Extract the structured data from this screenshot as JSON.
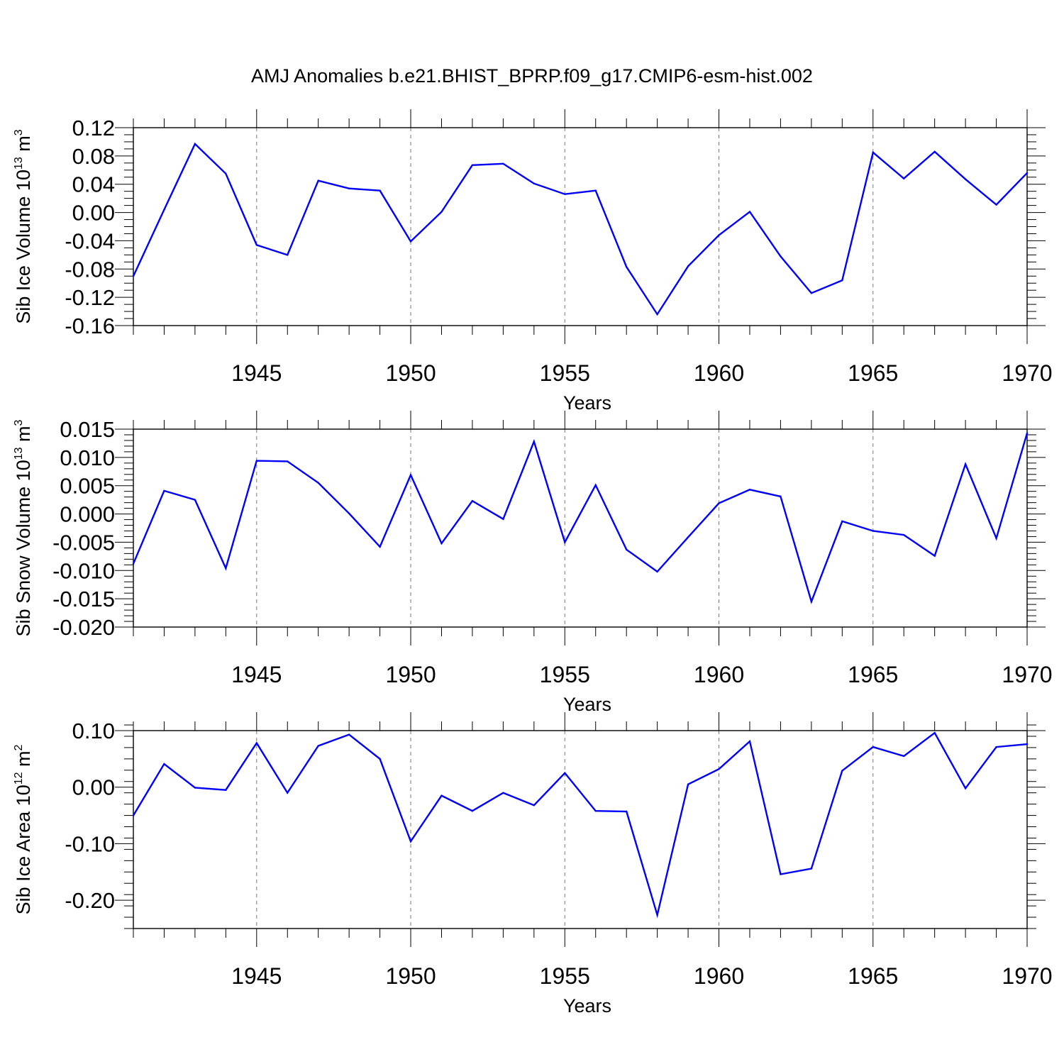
{
  "title": "AMJ Anomalies b.e21.BHIST_BPRP.f09_g17.CMIP6-esm-hist.002",
  "chart_data": [
    {
      "type": "line",
      "ylabel_main": "Sib Ice Volume 10",
      "ylabel_exp": "13",
      "ylabel_unit": "m",
      "ylabel_unit_exp": "3",
      "xlabel": "Years",
      "xlim": [
        1941,
        1970
      ],
      "ylim": [
        -0.16,
        0.12
      ],
      "yticks": [
        0.12,
        0.08,
        0.04,
        0.0,
        -0.04,
        -0.08,
        -0.12,
        -0.16
      ],
      "yticklabels": [
        "0.12",
        "0.08",
        "0.04",
        "0.00",
        "-0.04",
        "-0.08",
        "-0.12",
        "-0.16"
      ],
      "yminor": 0.01,
      "xticks": [
        1945,
        1950,
        1955,
        1960,
        1965,
        1970
      ],
      "xticklabels": [
        "1945",
        "1950",
        "1955",
        "1960",
        "1965",
        "1970"
      ],
      "grid": "dashed vertical at major x ticks",
      "line_color": "#0000ff",
      "x": [
        1941,
        1942,
        1943,
        1944,
        1945,
        1946,
        1947,
        1948,
        1949,
        1950,
        1951,
        1952,
        1953,
        1954,
        1955,
        1956,
        1957,
        1958,
        1959,
        1960,
        1961,
        1962,
        1963,
        1964,
        1965,
        1966,
        1967,
        1968,
        1969,
        1970
      ],
      "values": [
        -0.09,
        0.004,
        0.097,
        0.055,
        -0.046,
        -0.06,
        0.045,
        0.034,
        0.031,
        -0.041,
        0.001,
        0.067,
        0.069,
        0.041,
        0.026,
        0.031,
        -0.077,
        -0.144,
        -0.076,
        -0.032,
        0.001,
        -0.062,
        -0.114,
        -0.096,
        0.085,
        0.048,
        0.086,
        0.047,
        0.011,
        0.056
      ]
    },
    {
      "type": "line",
      "ylabel_main": "Sib Snow Volume 10",
      "ylabel_exp": "13",
      "ylabel_unit": "m",
      "ylabel_unit_exp": "3",
      "xlabel": "Years",
      "xlim": [
        1941,
        1970
      ],
      "ylim": [
        -0.02,
        0.015
      ],
      "yticks": [
        0.015,
        0.01,
        0.005,
        0.0,
        -0.005,
        -0.01,
        -0.015,
        -0.02
      ],
      "yticklabels": [
        "0.015",
        "0.010",
        "0.005",
        "0.000",
        "-0.005",
        "-0.010",
        "-0.015",
        "-0.020"
      ],
      "yminor": 0.001,
      "xticks": [
        1945,
        1950,
        1955,
        1960,
        1965,
        1970
      ],
      "xticklabels": [
        "1945",
        "1950",
        "1955",
        "1960",
        "1965",
        "1970"
      ],
      "grid": "dashed vertical at major x ticks",
      "line_color": "#0000ff",
      "x": [
        1941,
        1942,
        1943,
        1944,
        1945,
        1946,
        1947,
        1948,
        1949,
        1950,
        1951,
        1952,
        1953,
        1954,
        1955,
        1956,
        1957,
        1958,
        1959,
        1960,
        1961,
        1962,
        1963,
        1964,
        1965,
        1966,
        1967,
        1968,
        1969,
        1970
      ],
      "values": [
        -0.0088,
        0.0041,
        0.0025,
        -0.0096,
        0.0094,
        0.0093,
        0.0055,
        0.0001,
        -0.0058,
        0.0069,
        -0.0052,
        0.0023,
        -0.0009,
        0.0128,
        -0.005,
        0.0051,
        -0.0063,
        -0.0102,
        -0.0041,
        0.0019,
        0.0043,
        0.0031,
        -0.0155,
        -0.0013,
        -0.003,
        -0.0037,
        -0.0074,
        0.0088,
        -0.0043,
        0.0143
      ]
    },
    {
      "type": "line",
      "ylabel_main": "Sib Ice Area 10",
      "ylabel_exp": "12",
      "ylabel_unit": "m",
      "ylabel_unit_exp": "2",
      "xlabel": "Years",
      "xlim": [
        1941,
        1970
      ],
      "ylim": [
        -0.25,
        0.1
      ],
      "yticks": [
        0.1,
        0.0,
        -0.1,
        -0.2
      ],
      "yticklabels": [
        "0.10",
        "0.00",
        "-0.10",
        "-0.20"
      ],
      "yminor": 0.02,
      "xticks": [
        1945,
        1950,
        1955,
        1960,
        1965,
        1970
      ],
      "xticklabels": [
        "1945",
        "1950",
        "1955",
        "1960",
        "1965",
        "1970"
      ],
      "grid": "dashed vertical at major x ticks",
      "line_color": "#0000ff",
      "x": [
        1941,
        1942,
        1943,
        1944,
        1945,
        1946,
        1947,
        1948,
        1949,
        1950,
        1951,
        1952,
        1953,
        1954,
        1955,
        1956,
        1957,
        1958,
        1959,
        1960,
        1961,
        1962,
        1963,
        1964,
        1965,
        1966,
        1967,
        1968,
        1969,
        1970
      ],
      "values": [
        -0.05,
        0.041,
        -0.001,
        -0.005,
        0.078,
        -0.01,
        0.073,
        0.093,
        0.05,
        -0.096,
        -0.015,
        -0.042,
        -0.01,
        -0.032,
        0.025,
        -0.042,
        -0.043,
        -0.226,
        0.005,
        0.032,
        0.081,
        -0.154,
        -0.144,
        0.029,
        0.071,
        0.055,
        0.096,
        -0.002,
        0.071,
        0.076
      ]
    }
  ]
}
